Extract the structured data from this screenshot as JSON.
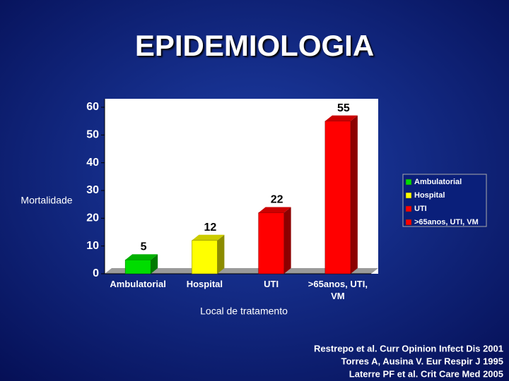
{
  "chart_data": {
    "type": "bar3d",
    "title": "EPIDEMIOLOGIA",
    "y_label": "Mortalidade",
    "x_label": "Local de tratamento",
    "categories": [
      "Ambulatorial",
      "Hospital",
      "UTI",
      ">65anos, UTI, VM"
    ],
    "values": [
      5,
      12,
      22,
      55
    ],
    "colors": [
      "#00dd00",
      "#ffff00",
      "#ff0000",
      "#ff0000"
    ],
    "ylim": [
      0,
      60
    ],
    "yticks": [
      0,
      10,
      20,
      30,
      40,
      50,
      60
    ],
    "legend": "right",
    "references": [
      "Restrepo et al. Curr Opinion Infect Dis 2001",
      "Torres A, Ausina V.  Eur Respir J 1995",
      "Laterre  PF et al. Crit Care Med 2005"
    ]
  }
}
